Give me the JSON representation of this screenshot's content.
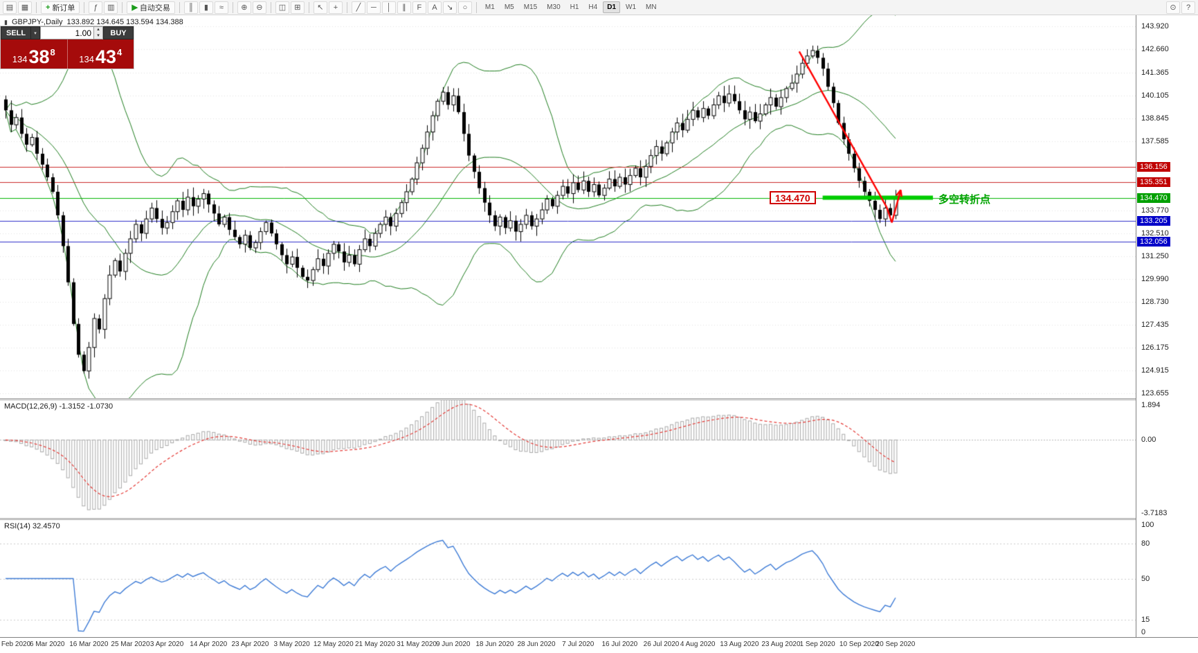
{
  "toolbar": {
    "groups": [
      {
        "items": [
          {
            "name": "new-chart-icon",
            "glyph": "▤"
          },
          {
            "name": "chart-profiles-icon",
            "glyph": "▦"
          }
        ]
      },
      {
        "items": [
          {
            "name": "new-order-button",
            "label": "新订单",
            "glyph": "+",
            "glyph_color": "#1a9c1a"
          }
        ]
      },
      {
        "items": [
          {
            "name": "indicators-icon",
            "glyph": "ƒ"
          },
          {
            "name": "market-depth-icon",
            "glyph": "▥"
          }
        ]
      },
      {
        "items": [
          {
            "name": "autotrading-button",
            "label": "自动交易",
            "glyph": "▶",
            "glyph_color": "#1a9c1a"
          }
        ]
      },
      {
        "items": [
          {
            "name": "bar-chart-icon",
            "glyph": "║"
          },
          {
            "name": "candlestick-chart-icon",
            "glyph": "▮"
          },
          {
            "name": "line-chart-icon",
            "glyph": "≈"
          }
        ]
      },
      {
        "items": [
          {
            "name": "zoom-in-icon",
            "glyph": "⊕"
          },
          {
            "name": "zoom-out-icon",
            "glyph": "⊖"
          }
        ]
      },
      {
        "items": [
          {
            "name": "tile-windows-icon",
            "glyph": "◫"
          },
          {
            "name": "arrange-windows-icon",
            "glyph": "⊞"
          }
        ]
      },
      {
        "items": [
          {
            "name": "cursor-icon",
            "glyph": "↖"
          },
          {
            "name": "crosshair-icon",
            "glyph": "+"
          }
        ]
      },
      {
        "items": [
          {
            "name": "trendline-icon",
            "glyph": "╱"
          },
          {
            "name": "horizontal-line-icon",
            "glyph": "─"
          },
          {
            "name": "vertical-line-icon",
            "glyph": "│"
          },
          {
            "name": "channel-icon",
            "glyph": "∥"
          },
          {
            "name": "fibonacci-icon",
            "glyph": "F"
          },
          {
            "name": "text-label-icon",
            "glyph": "A"
          },
          {
            "name": "arrow-tool-icon",
            "glyph": "↘"
          },
          {
            "name": "shapes-icon",
            "glyph": "○"
          }
        ]
      }
    ],
    "timeframes": [
      "M1",
      "M5",
      "M15",
      "M30",
      "H1",
      "H4",
      "D1",
      "W1",
      "MN"
    ],
    "active_timeframe": "D1",
    "right_items": [
      {
        "name": "search-icon",
        "glyph": "⊙"
      },
      {
        "name": "help-icon",
        "glyph": "?"
      }
    ]
  },
  "trade_panel": {
    "sell_label": "SELL",
    "buy_label": "BUY",
    "volume": "1.00",
    "sell": {
      "big": "134",
      "main": "38",
      "pip": "8"
    },
    "buy": {
      "big": "134",
      "main": "43",
      "pip": "4"
    },
    "icons": {
      "dropdown": "▾",
      "up": "▴",
      "down": "▾"
    }
  },
  "chart_data": {
    "type": "candlestick",
    "symbol": "GBPJPY",
    "period": "Daily",
    "title": "GBPJPY-,Daily",
    "title_ohlc": "133.892 134.645 133.594 134.388",
    "ohlc": {
      "open": "133.892",
      "high": "134.645",
      "low": "133.594",
      "close": "134.388"
    },
    "ylim": [
      123.4,
      144.55
    ],
    "closes": [
      139.3,
      138.5,
      138.9,
      138.0,
      137.4,
      137.8,
      136.9,
      136.3,
      135.6,
      134.8,
      133.5,
      131.8,
      129.8,
      127.5,
      125.8,
      124.9,
      126.2,
      127.8,
      127.2,
      128.9,
      130.2,
      131.0,
      130.4,
      131.4,
      132.2,
      133.0,
      132.5,
      133.3,
      133.9,
      133.3,
      132.8,
      133.1,
      133.7,
      134.3,
      133.8,
      134.5,
      134.0,
      134.4,
      134.7,
      134.1,
      133.6,
      133.0,
      133.4,
      132.7,
      132.3,
      131.9,
      132.4,
      131.7,
      132.0,
      132.6,
      133.1,
      132.5,
      131.9,
      131.3,
      130.8,
      131.2,
      130.6,
      130.1,
      129.9,
      130.5,
      131.1,
      130.7,
      131.4,
      131.9,
      131.5,
      130.9,
      131.3,
      130.8,
      131.6,
      132.2,
      131.8,
      132.5,
      133.0,
      133.4,
      132.9,
      133.6,
      134.2,
      134.8,
      135.5,
      136.4,
      137.2,
      138.1,
      139.0,
      139.8,
      140.3,
      139.6,
      140.1,
      139.2,
      138.0,
      136.8,
      135.9,
      135.0,
      134.2,
      133.5,
      132.9,
      133.4,
      132.8,
      133.2,
      132.6,
      133.0,
      133.5,
      132.9,
      133.3,
      133.8,
      134.4,
      134.0,
      134.6,
      135.1,
      134.7,
      135.3,
      134.9,
      135.4,
      134.8,
      135.2,
      134.6,
      135.0,
      135.5,
      135.1,
      135.6,
      135.2,
      135.7,
      136.1,
      135.6,
      136.2,
      136.8,
      137.3,
      136.9,
      137.5,
      138.1,
      138.6,
      138.2,
      138.8,
      139.3,
      138.9,
      139.4,
      139.0,
      139.6,
      140.1,
      139.7,
      140.2,
      139.8,
      139.3,
      138.8,
      139.2,
      138.7,
      139.1,
      139.6,
      140.0,
      139.5,
      140.0,
      140.5,
      140.8,
      141.3,
      141.9,
      142.3,
      142.6,
      142.2,
      141.6,
      140.6,
      139.7,
      138.6,
      137.7,
      136.9,
      136.1,
      135.4,
      134.8,
      134.3,
      133.8,
      133.3,
      133.9,
      133.5,
      134.39
    ],
    "x_labels": [
      {
        "i": 2,
        "t": "Feb 2020"
      },
      {
        "i": 8,
        "t": "6 Mar 2020"
      },
      {
        "i": 16,
        "t": "16 Mar 2020"
      },
      {
        "i": 24,
        "t": "25 Mar 2020"
      },
      {
        "i": 31,
        "t": "3 Apr 2020"
      },
      {
        "i": 39,
        "t": "14 Apr 2020"
      },
      {
        "i": 47,
        "t": "23 Apr 2020"
      },
      {
        "i": 55,
        "t": "3 May 2020"
      },
      {
        "i": 63,
        "t": "12 May 2020"
      },
      {
        "i": 71,
        "t": "21 May 2020"
      },
      {
        "i": 79,
        "t": "31 May 2020"
      },
      {
        "i": 86,
        "t": "9 Jun 2020"
      },
      {
        "i": 94,
        "t": "18 Jun 2020"
      },
      {
        "i": 102,
        "t": "28 Jun 2020"
      },
      {
        "i": 110,
        "t": "7 Jul 2020"
      },
      {
        "i": 118,
        "t": "16 Jul 2020"
      },
      {
        "i": 126,
        "t": "26 Jul 2020"
      },
      {
        "i": 133,
        "t": "4 Aug 2020"
      },
      {
        "i": 141,
        "t": "13 Aug 2020"
      },
      {
        "i": 149,
        "t": "23 Aug 2020"
      },
      {
        "i": 156,
        "t": "1 Sep 2020"
      },
      {
        "i": 164,
        "t": "10 Sep 2020"
      },
      {
        "i": 171,
        "t": "20 Sep 2020"
      }
    ],
    "y_ticks": [
      "143.920",
      "142.660",
      "141.365",
      "140.105",
      "138.845",
      "137.585",
      "133.770",
      "132.510",
      "131.250",
      "129.990",
      "128.730",
      "127.435",
      "126.175",
      "124.915",
      "123.655"
    ],
    "levels": [
      {
        "value": 136.156,
        "label": "136.156",
        "color": "#cc2929",
        "box": "#c00000"
      },
      {
        "value": 135.351,
        "label": "135.351",
        "color": "#cc2929",
        "box": "#c00000"
      },
      {
        "value": 134.47,
        "label": "134.470",
        "color": "#00b300",
        "box": "#00a000"
      },
      {
        "value": 133.205,
        "label": "133.205",
        "color": "#3030cc",
        "box": "#0000c8"
      },
      {
        "value": 132.056,
        "label": "132.056",
        "color": "#3030cc",
        "box": "#0000c8"
      }
    ],
    "highlight_bar": {
      "price": 134.47,
      "from_index": 157,
      "to_x": 1348,
      "color": "#00cc00"
    },
    "turning_point": {
      "price": "134.470",
      "text": "多空转折点",
      "text_color": "#00a300",
      "box_color": "#d00000"
    },
    "trend_arrow": {
      "color": "#ff0000",
      "segments": [
        [
          152.5,
          142.55,
          169.3,
          133.95
        ],
        [
          169.3,
          133.95,
          170.3,
          133.1
        ],
        [
          170.3,
          133.1,
          172.0,
          134.9
        ]
      ]
    },
    "bollinger": {
      "period": 20,
      "deviation": 2,
      "color": "#1e7d1e"
    },
    "macd": {
      "label": "MACD(12,26,9)",
      "current": "-1.3152 -1.0730",
      "title": "MACD(12,26,9) -1.3152 -1.0730",
      "range": [
        -3.7183,
        1.894
      ],
      "ticks": [
        {
          "v": 1.894,
          "t": "1.894"
        },
        {
          "v": 0,
          "t": "0.00"
        },
        {
          "v": -3.7183,
          "t": "-3.7183"
        }
      ],
      "hist_color": "#a9a9a9",
      "signal_color": "#e53935"
    },
    "rsi": {
      "label": "RSI(14)",
      "current": "32.4570",
      "title": "RSI(14) 32.4570",
      "ticks": [
        {
          "v": 100,
          "t": "100"
        },
        {
          "v": 80,
          "t": "80"
        },
        {
          "v": 50,
          "t": "50"
        },
        {
          "v": 15,
          "t": "15"
        },
        {
          "v": 0,
          "t": "0"
        }
      ],
      "levels": [
        80,
        50,
        15
      ],
      "color": "#3d7bd6"
    }
  }
}
